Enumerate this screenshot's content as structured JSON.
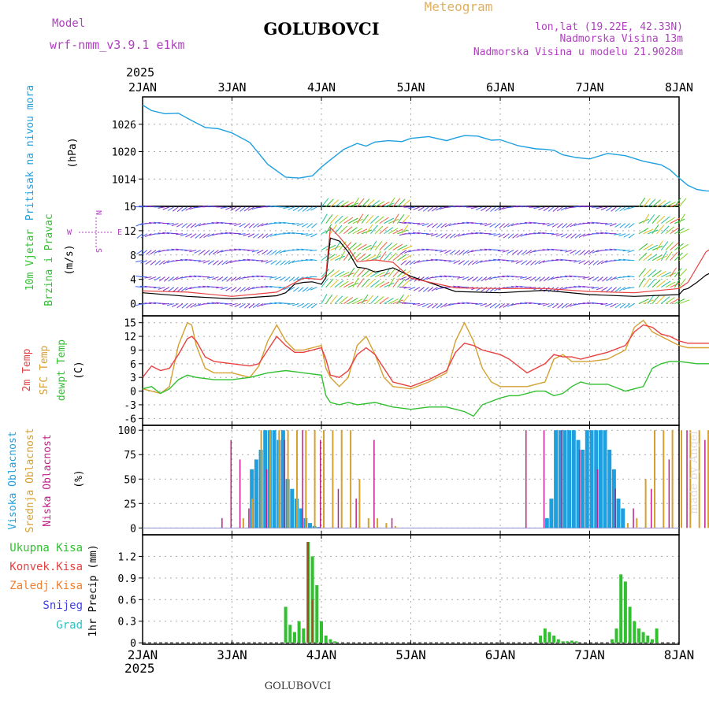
{
  "header": {
    "model_label": "Model",
    "model_name": "wrf-nmm_v3.9.1 e1km",
    "location": "GOLUBOVCI",
    "chart_kind": "Meteogram",
    "coords": "lon,lat (19.22E, 42.33N)",
    "elevation": "Nadmorska Visina 13m",
    "model_elevation": "Nadmorska Visina u modelu 21.9028m",
    "footer_location": "GOLUBOVCI",
    "credit": "made by Angel"
  },
  "colors": {
    "pressure": "#1ea0e0",
    "temp2m": "#e84040",
    "sfc_temp": "#d4a030",
    "dewpt": "#30c030",
    "high_cloud": "#1ea0e0",
    "mid_cloud": "#d4a030",
    "low_cloud": "#c0208a",
    "precip_total": "#30c030",
    "precip_conv": "#a05020",
    "header_purple": "#b040c0",
    "header_gold": "#e0b060",
    "frame": "#000000",
    "grid": "#aaaaaa"
  },
  "chart_data": [
    {
      "type": "line",
      "panel": "pressure",
      "ylabel_main": "Pritisak na nivou mora",
      "ylabel_unit": "(hPa)",
      "ylim": [
        1008,
        1032
      ],
      "yticks": [
        1014,
        1020,
        1026
      ],
      "x_ticks": [
        "2JAN",
        "3JAN",
        "4JAN",
        "5JAN",
        "6JAN",
        "7JAN",
        "8JAN"
      ],
      "x_top_year": "2025",
      "series": [
        {
          "x": [
            0,
            0.1,
            0.25,
            0.4,
            0.55,
            0.7,
            0.85,
            1.0,
            1.2,
            1.4,
            1.6,
            1.75,
            1.9,
            2.0,
            2.1,
            2.25,
            2.4,
            2.5,
            2.6,
            2.75,
            2.9,
            3.0,
            3.2,
            3.4,
            3.5,
            3.6,
            3.75,
            3.9,
            4.0,
            4.2,
            4.4,
            4.5,
            4.6,
            4.7,
            4.85,
            5.0,
            5.2,
            5.4,
            5.6,
            5.8,
            5.9,
            6.0,
            6.1,
            6.2,
            6.3,
            6.45,
            6.6,
            6.75,
            6.9,
            7.0
          ],
          "y": [
            1030.2,
            1029,
            1028.3,
            1028.4,
            1026.8,
            1025.3,
            1025,
            1024.1,
            1022,
            1017.2,
            1014.4,
            1014.2,
            1014.7,
            1016.6,
            1018.2,
            1020.5,
            1021.8,
            1021.2,
            1022.1,
            1022.4,
            1022.2,
            1022.9,
            1023.3,
            1022.4,
            1023,
            1023.5,
            1023.4,
            1022.5,
            1022.6,
            1021.3,
            1020.6,
            1020.5,
            1020.3,
            1019.3,
            1018.7,
            1018.4,
            1019.6,
            1019.1,
            1017.9,
            1017.1,
            1016,
            1014.2,
            1012.6,
            1011.7,
            1011.4,
            1011.2,
            1010.8,
            1010.3,
            1009.9,
            1009.5
          ]
        }
      ]
    },
    {
      "type": "line",
      "panel": "wind",
      "ylabel_main": "10m Vjetar",
      "ylabel_sub": "Brzina i Pravac",
      "ylabel_unit": "(m/s)",
      "compass": {
        "n": "N",
        "s": "S",
        "e": "E",
        "w": "W"
      },
      "ylim": [
        -2,
        16
      ],
      "yticks": [
        0,
        4,
        8,
        12,
        16
      ],
      "series": [
        {
          "name": "wind_speed",
          "x": [
            0,
            0.5,
            1,
            1.5,
            1.6,
            1.7,
            1.8,
            1.9,
            2.0,
            2.05,
            2.1,
            2.2,
            2.3,
            2.4,
            2.5,
            2.6,
            2.7,
            2.8,
            3.0,
            3.5,
            4.0,
            4.5,
            5.0,
            5.5,
            6.0,
            6.05,
            6.1,
            6.2,
            6.3,
            6.4,
            6.5,
            6.6,
            6.7,
            6.8,
            6.9,
            7.0
          ],
          "y": [
            1.8,
            1.2,
            0.8,
            1.3,
            1.8,
            3.2,
            3.5,
            3.6,
            3.2,
            4.3,
            10.8,
            10.3,
            8.5,
            6,
            5.8,
            5.2,
            5.5,
            5.9,
            4.5,
            2,
            1.8,
            2.2,
            1.5,
            1.2,
            1.5,
            2.3,
            2.5,
            3.5,
            4.7,
            5.4,
            6.5,
            7.8,
            9.5,
            8.3,
            6.7,
            6
          ]
        },
        {
          "name": "gust",
          "x": [
            0,
            0.5,
            1,
            1.5,
            1.8,
            2.0,
            2.05,
            2.1,
            2.2,
            2.3,
            2.4,
            2.6,
            2.8,
            3.0,
            3.5,
            4.0,
            4.5,
            5.0,
            5.5,
            6.0,
            6.1,
            6.3,
            6.5,
            6.7,
            6.9,
            7.0
          ],
          "y": [
            2.1,
            1.9,
            1.2,
            1.9,
            4.2,
            4,
            4.8,
            12.5,
            11,
            9.2,
            6.9,
            7.2,
            6.8,
            4.2,
            2.6,
            2.5,
            2.5,
            2,
            1.8,
            2.5,
            3.5,
            8.5,
            10.5,
            11,
            8.5,
            7.5
          ]
        }
      ]
    },
    {
      "type": "line",
      "panel": "temperature",
      "ylabel_main": "2m Temp",
      "ylabel_sub": "SFC Temp",
      "ylabel_third": "dewpt Temp",
      "ylabel_unit": "(C)",
      "ylim": [
        -7.5,
        16.5
      ],
      "yticks": [
        -6,
        -3,
        0,
        3,
        6,
        9,
        12,
        15
      ],
      "series": [
        {
          "name": "2m",
          "x": [
            0,
            0.1,
            0.2,
            0.3,
            0.4,
            0.5,
            0.55,
            0.6,
            0.7,
            0.8,
            1.0,
            1.2,
            1.3,
            1.4,
            1.5,
            1.6,
            1.7,
            1.8,
            1.9,
            2.0,
            2.05,
            2.1,
            2.2,
            2.3,
            2.4,
            2.5,
            2.6,
            2.7,
            2.8,
            3.0,
            3.2,
            3.4,
            3.5,
            3.6,
            3.7,
            3.8,
            3.9,
            4.0,
            4.1,
            4.3,
            4.5,
            4.6,
            4.7,
            4.8,
            4.9,
            5.0,
            5.2,
            5.4,
            5.5,
            5.6,
            5.7,
            5.8,
            5.9,
            6.0,
            6.1,
            6.2,
            6.3,
            6.4,
            6.5,
            6.6,
            6.7,
            6.8,
            6.9,
            7.0
          ],
          "y": [
            3,
            5.5,
            4.5,
            5,
            8,
            11.5,
            12,
            11,
            7.5,
            6.5,
            6,
            5.5,
            6,
            9,
            12,
            10,
            8.5,
            8.5,
            9,
            9.5,
            7,
            3.5,
            3,
            4.5,
            8,
            9.5,
            8,
            5,
            2,
            1,
            2.5,
            4.5,
            8.5,
            10.5,
            10,
            9,
            8.5,
            8,
            7,
            4,
            6,
            8,
            7.5,
            7.5,
            7,
            7.5,
            8.5,
            10,
            13,
            14.5,
            14,
            12.5,
            12,
            11,
            10.5,
            10.5,
            10.5,
            10.5,
            10.5,
            10.5,
            10.5,
            10.5,
            10.5,
            10.5
          ]
        },
        {
          "name": "sfc",
          "x": [
            0,
            0.1,
            0.2,
            0.3,
            0.4,
            0.5,
            0.55,
            0.6,
            0.7,
            0.8,
            1.0,
            1.2,
            1.3,
            1.4,
            1.5,
            1.6,
            1.7,
            1.8,
            1.9,
            2.0,
            2.05,
            2.1,
            2.2,
            2.3,
            2.4,
            2.5,
            2.6,
            2.7,
            2.8,
            3.0,
            3.2,
            3.4,
            3.5,
            3.6,
            3.7,
            3.8,
            3.9,
            4.0,
            4.1,
            4.3,
            4.5,
            4.6,
            4.7,
            4.8,
            4.9,
            5.0,
            5.2,
            5.4,
            5.5,
            5.6,
            5.7,
            5.8,
            5.9,
            6.0,
            6.1,
            6.2,
            6.3,
            6.4,
            6.5,
            6.6,
            6.7,
            6.8,
            6.9,
            7.0
          ],
          "y": [
            0.5,
            0,
            -0.5,
            1,
            10,
            15,
            14.5,
            10,
            5,
            4,
            4,
            3,
            5.5,
            11,
            14.5,
            11,
            9,
            9,
            9.5,
            10,
            5,
            3,
            1,
            3,
            10,
            12,
            8,
            3,
            1,
            0.5,
            2,
            4,
            11,
            15,
            11,
            5,
            2,
            1,
            1,
            1,
            2,
            7,
            8,
            6.5,
            6.5,
            6.5,
            7,
            9,
            14,
            15.5,
            13,
            12,
            11,
            10,
            9.5,
            9.5,
            9.5,
            9.5,
            9.5,
            9.5,
            9.5,
            9.5,
            9.5,
            9.5
          ]
        },
        {
          "name": "dewpt",
          "x": [
            0,
            0.1,
            0.2,
            0.3,
            0.4,
            0.5,
            0.6,
            0.8,
            1.0,
            1.2,
            1.3,
            1.4,
            1.6,
            1.8,
            2.0,
            2.05,
            2.1,
            2.2,
            2.3,
            2.4,
            2.6,
            2.8,
            3.0,
            3.2,
            3.4,
            3.5,
            3.6,
            3.7,
            3.8,
            4.0,
            4.1,
            4.2,
            4.4,
            4.5,
            4.6,
            4.7,
            4.8,
            4.9,
            5.0,
            5.2,
            5.4,
            5.5,
            5.6,
            5.7,
            5.8,
            5.9,
            6.0,
            6.2,
            6.4,
            6.6,
            6.8,
            7.0
          ],
          "y": [
            0.5,
            1,
            -0.5,
            0.5,
            2.5,
            3.5,
            3,
            2.5,
            2.5,
            3,
            3.5,
            4,
            4.5,
            4,
            3.5,
            -1,
            -2.5,
            -3,
            -2.5,
            -3,
            -2.5,
            -3.5,
            -4,
            -3.5,
            -3.5,
            -4,
            -4.5,
            -5.5,
            -3,
            -1.5,
            -1,
            -1,
            0,
            0,
            -1,
            -0.5,
            1,
            2,
            1.5,
            1.5,
            0,
            0.5,
            1,
            5,
            6,
            6.5,
            6.5,
            6,
            6,
            8,
            10.5,
            12
          ]
        }
      ]
    },
    {
      "type": "bar",
      "panel": "clouds",
      "ylabel_main": "Visoka Oblacnost",
      "ylabel_sub": "Srednja Oblacnost",
      "ylabel_third": "Niska Oblacnost",
      "ylabel_unit": "(%)",
      "ylim": [
        -7,
        105
      ],
      "yticks": [
        0,
        25,
        50,
        75,
        100
      ],
      "series": [
        {
          "name": "high",
          "x": [
            1.2,
            1.25,
            1.3,
            1.35,
            1.4,
            1.45,
            1.5,
            1.55,
            1.6,
            1.65,
            1.7,
            1.75,
            1.8,
            1.85,
            1.9,
            1.95,
            4.5,
            4.55,
            4.6,
            4.65,
            4.7,
            4.75,
            4.8,
            4.85,
            4.9,
            4.95,
            5.0,
            5.05,
            5.1,
            5.15,
            5.2,
            5.25,
            5.3,
            5.35
          ],
          "y": [
            60,
            70,
            80,
            100,
            100,
            100,
            90,
            100,
            50,
            40,
            30,
            20,
            10,
            5,
            2,
            1,
            10,
            30,
            100,
            100,
            100,
            100,
            100,
            90,
            80,
            100,
            100,
            100,
            100,
            100,
            80,
            60,
            30,
            20
          ]
        },
        {
          "name": "mid",
          "x": [
            1.1,
            1.2,
            1.3,
            1.4,
            1.5,
            1.6,
            1.7,
            1.8,
            1.9,
            2.0,
            2.1,
            2.2,
            2.3,
            2.4,
            2.5,
            2.6,
            2.7,
            2.8,
            5.4,
            5.5,
            5.6,
            5.7,
            5.8,
            5.9,
            6.0,
            6.1,
            6.2,
            6.3,
            6.4,
            6.5
          ],
          "y": [
            10,
            30,
            100,
            100,
            100,
            100,
            100,
            100,
            100,
            100,
            100,
            100,
            100,
            50,
            10,
            10,
            5,
            2,
            5,
            10,
            50,
            100,
            100,
            100,
            100,
            100,
            100,
            100,
            100,
            80
          ]
        },
        {
          "name": "low",
          "x": [
            0.9,
            1.0,
            1.1,
            1.2,
            1.4,
            1.6,
            1.8,
            2.0,
            2.2,
            2.4,
            2.6,
            2.8,
            4.3,
            4.5,
            4.7,
            4.9,
            5.1,
            5.3,
            5.5,
            5.7,
            5.9,
            6.1,
            6.3,
            6.5,
            6.7,
            6.9
          ],
          "y": [
            10,
            90,
            70,
            20,
            60,
            90,
            100,
            90,
            40,
            30,
            90,
            10,
            100,
            100,
            100,
            80,
            60,
            40,
            20,
            40,
            70,
            100,
            90,
            60,
            30,
            10
          ]
        }
      ]
    },
    {
      "type": "bar",
      "panel": "precip",
      "legend": [
        "Ukupna Kisa",
        "Konvek.Kisa",
        "Zaledj.Kisa",
        "Snijeg",
        "Grad"
      ],
      "ylabel_unit": "1hr Precip (mm)",
      "ylim": [
        -0.02,
        1.5
      ],
      "yticks": [
        0,
        0.3,
        0.6,
        0.9,
        1.2
      ],
      "x_ticks": [
        "2JAN",
        "3JAN",
        "4JAN",
        "5JAN",
        "6JAN",
        "7JAN",
        "8JAN"
      ],
      "x_bottom_year": "2025",
      "series": [
        {
          "name": "Ukupna Kisa",
          "x": [
            1.6,
            1.65,
            1.7,
            1.75,
            1.8,
            1.85,
            1.9,
            1.95,
            2.0,
            2.05,
            2.1,
            2.15,
            4.45,
            4.5,
            4.55,
            4.6,
            4.65,
            4.7,
            4.75,
            4.8,
            4.85,
            5.25,
            5.3,
            5.35,
            5.4,
            5.45,
            5.5,
            5.55,
            5.6,
            5.65,
            5.7,
            5.75
          ],
          "y": [
            0.5,
            0.25,
            0.15,
            0.3,
            0.2,
            1.4,
            1.2,
            0.8,
            0.3,
            0.1,
            0.05,
            0.02,
            0.1,
            0.2,
            0.15,
            0.1,
            0.05,
            0.02,
            0.02,
            0.03,
            0.02,
            0.05,
            0.2,
            0.95,
            0.85,
            0.5,
            0.3,
            0.2,
            0.15,
            0.1,
            0.05,
            0.2
          ]
        },
        {
          "name": "Konvek.Kisa",
          "x": [
            1.85,
            1.9
          ],
          "y": [
            1.4,
            0.6
          ]
        }
      ]
    }
  ]
}
